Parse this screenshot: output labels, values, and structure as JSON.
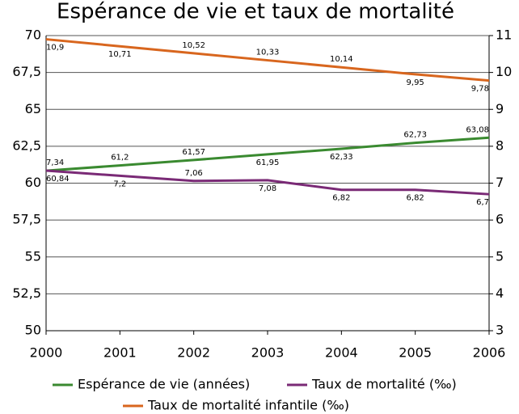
{
  "chart_data": {
    "type": "line",
    "title": "Espérance de vie et taux de mortalité",
    "x": [
      2000,
      2001,
      2002,
      2003,
      2004,
      2005,
      2006
    ],
    "xlim": [
      2000,
      2006
    ],
    "xticks": [
      2000,
      2001,
      2002,
      2003,
      2004,
      2005,
      2006
    ],
    "ylim": [
      50,
      70
    ],
    "yticks": [
      50,
      {
        "value": 52.5,
        "label": "52,5"
      },
      55,
      {
        "value": 57.5,
        "label": "57,5"
      },
      60,
      {
        "value": 62.5,
        "label": "62,5"
      },
      65,
      {
        "value": 67.5,
        "label": "67,5"
      },
      70
    ],
    "y2lim": [
      3,
      11
    ],
    "y2ticks": [
      3,
      4,
      5,
      6,
      7,
      8,
      9,
      10,
      11
    ],
    "grid": true,
    "legend": "bottom",
    "series": [
      {
        "name": "Espérance de vie (années)",
        "color": "#3a8a30",
        "values": [
          60.84,
          61.2,
          61.57,
          61.95,
          62.33,
          62.73,
          63.08
        ],
        "value_labels": [
          "60,84",
          "61,2",
          "61,57",
          "61,95",
          "62,33",
          "62,73",
          "63,08"
        ]
      },
      {
        "name": "Taux de mortalité (‰)",
        "color": "#7a2a76",
        "axis": "y2",
        "values": [
          7.34,
          7.2,
          7.06,
          7.08,
          6.82,
          6.82,
          6.7
        ],
        "value_labels": [
          "7,34",
          "7,2",
          "7,06",
          "7,08",
          "6,82",
          "6,82",
          "6,7"
        ]
      },
      {
        "name": "Taux de mortalité infantile (‰)",
        "color": "#d8661e",
        "axis": "y2",
        "values": [
          10.9,
          10.71,
          10.52,
          10.33,
          10.14,
          9.95,
          9.78
        ],
        "value_labels": [
          "10,9",
          "10,71",
          "10,52",
          "10,33",
          "10,14",
          "9,95",
          "9,78"
        ]
      }
    ]
  }
}
